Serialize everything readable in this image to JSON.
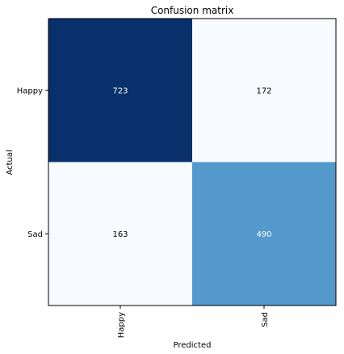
{
  "chart_data": {
    "type": "heatmap",
    "title": "Confusion matrix",
    "xlabel": "Predicted",
    "ylabel": "Actual",
    "x_categories": [
      "Happy",
      "Sad"
    ],
    "y_categories": [
      "Happy",
      "Sad"
    ],
    "values": [
      [
        723,
        172
      ],
      [
        163,
        490
      ]
    ],
    "colormap": "Blues",
    "grid": false,
    "colors": {
      "Happy|Happy": "#08306b",
      "Happy|Sad": "#f7fbff",
      "Sad|Happy": "#f7fbff",
      "Sad|Sad": "#5499cb"
    },
    "text_colors": {
      "dark_cell": "#ffffff",
      "light_cell": "#000000"
    }
  }
}
